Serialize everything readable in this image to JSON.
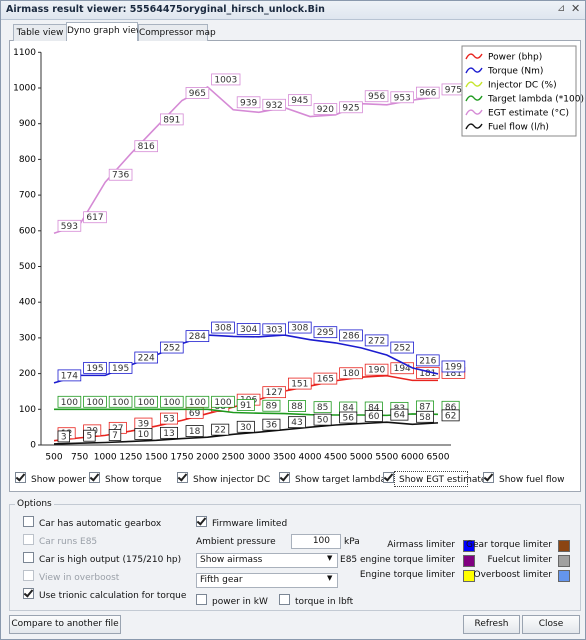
{
  "window": {
    "title": "Airmass result viewer: 55564475oryginal_hirsch_unlock.Bin"
  },
  "tabs": [
    {
      "label": "Table view",
      "active": false
    },
    {
      "label": "Dyno graph view",
      "active": true
    },
    {
      "label": "Compressor map",
      "active": false
    }
  ],
  "chart_data": {
    "type": "line",
    "categories": [
      "500",
      "750",
      "1000",
      "1250",
      "1500",
      "1750",
      "2000",
      "2500",
      "3000",
      "3500",
      "4000",
      "4500",
      "5000",
      "5500",
      "6000",
      "6500"
    ],
    "ylim": [
      0,
      1100
    ],
    "yticks": [
      0,
      100,
      200,
      300,
      400,
      500,
      600,
      700,
      800,
      900,
      1000,
      1100
    ],
    "legend": "top-right",
    "series": [
      {
        "name": "Power (bhp)",
        "color": "#e8231e",
        "values": [
          12,
          20,
          27,
          39,
          53,
          69,
          88,
          106,
          127,
          151,
          165,
          180,
          190,
          194,
          181,
          181
        ]
      },
      {
        "name": "Torque (Nm)",
        "color": "#1c1ccf",
        "values": [
          174,
          195,
          195,
          224,
          252,
          284,
          308,
          304,
          303,
          308,
          295,
          286,
          272,
          252,
          216,
          199
        ]
      },
      {
        "name": "Injector DC (%)",
        "color": "#c6e52c",
        "values": [
          null,
          null,
          null,
          null,
          null,
          null,
          null,
          null,
          null,
          null,
          null,
          null,
          null,
          null,
          null,
          null
        ]
      },
      {
        "name": "Target lambda (*100)",
        "color": "#1f9a1f",
        "values": [
          100,
          100,
          100,
          100,
          100,
          100,
          100,
          91,
          89,
          88,
          85,
          84,
          84,
          83,
          87,
          86
        ]
      },
      {
        "name": "EGT estimate (°C)",
        "color": "#d58ad5",
        "values": [
          593,
          617,
          736,
          816,
          891,
          965,
          1003,
          939,
          932,
          945,
          920,
          925,
          956,
          953,
          966,
          975
        ]
      },
      {
        "name": "Fuel flow (l/h)",
        "color": "#111111",
        "values": [
          3,
          5,
          7,
          10,
          13,
          18,
          22,
          30,
          36,
          43,
          50,
          56,
          60,
          64,
          58,
          62
        ]
      }
    ]
  },
  "show_toggles": [
    {
      "label": "Show power",
      "checked": true
    },
    {
      "label": "Show torque",
      "checked": true
    },
    {
      "label": "Show injector DC",
      "checked": true
    },
    {
      "label": "Show target lambda",
      "checked": true
    },
    {
      "label": "Show EGT estimate",
      "checked": true
    },
    {
      "label": "Show fuel flow",
      "checked": true
    }
  ],
  "options": {
    "title": "Options",
    "checkboxes": [
      {
        "label": "Car has automatic gearbox",
        "checked": false,
        "enabled": true
      },
      {
        "label": "Car runs E85",
        "checked": false,
        "enabled": false
      },
      {
        "label": "Car is high output (175/210 hp)",
        "checked": false,
        "enabled": true
      },
      {
        "label": "View in overboost",
        "checked": false,
        "enabled": false
      },
      {
        "label": "Use trionic calculation for torque",
        "checked": true,
        "enabled": true
      }
    ],
    "firmware_limited": {
      "label": "Firmware limited",
      "checked": true
    },
    "ambient_pressure": {
      "label": "Ambient pressure",
      "value": 100,
      "unit": "kPa"
    },
    "dropdowns": [
      "Show airmass",
      "Fifth gear"
    ],
    "units": [
      {
        "label": "power in kW",
        "checked": false
      },
      {
        "label": "torque in lbft",
        "checked": false
      }
    ],
    "limiters": [
      {
        "label": "Airmass limiter",
        "color": "#0000ff"
      },
      {
        "label": "E85 engine torque limiter",
        "color": "#800080"
      },
      {
        "label": "Engine torque limiter",
        "color": "#ffff00"
      },
      {
        "label": "Gear torque limiter",
        "color": "#8b4513"
      },
      {
        "label": "Fuelcut limiter",
        "color": "#a0a0a0"
      },
      {
        "label": "Overboost limiter",
        "color": "#6495ed"
      }
    ]
  },
  "buttons": [
    "Compare to another file",
    "Refresh",
    "Close"
  ]
}
